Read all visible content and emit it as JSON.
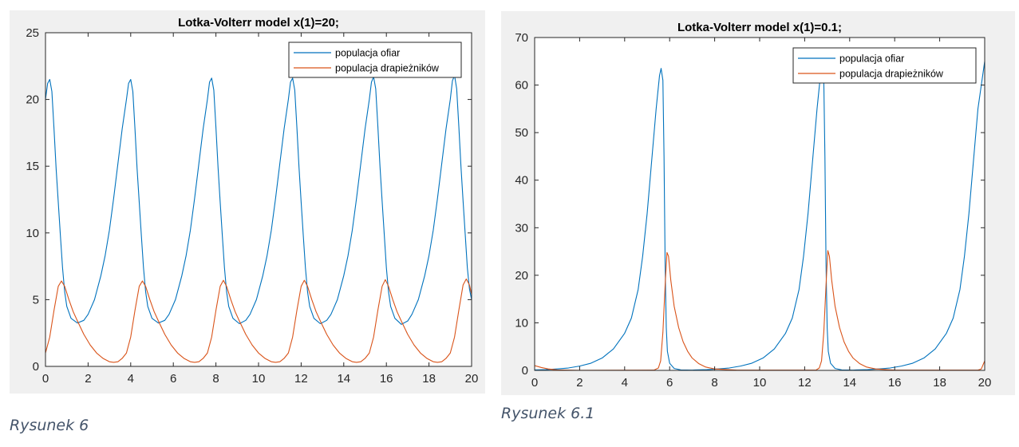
{
  "captions": [
    "Rysunek 6",
    "Rysunek 6.1"
  ],
  "colors": {
    "prey": "#0072BD",
    "predator": "#D95319",
    "figure_bg": "#f0f0f0"
  },
  "chart_data": [
    {
      "type": "line",
      "title": "Lotka-Volterr model x(1)=20;",
      "xlabel": "",
      "ylabel": "",
      "xlim": [
        0,
        20
      ],
      "ylim": [
        0,
        25
      ],
      "xticks": [
        "0",
        "2",
        "4",
        "6",
        "8",
        "10",
        "12",
        "14",
        "16",
        "18",
        "20"
      ],
      "yticks": [
        "0",
        "5",
        "10",
        "15",
        "20",
        "25"
      ],
      "grid": false,
      "legend_position": "top-right",
      "series": [
        {
          "name": "populacja ofiar",
          "color": "#0072BD",
          "x": [
            0,
            0.1,
            0.2,
            0.3,
            0.4,
            0.5,
            0.6,
            0.7,
            0.8,
            0.9,
            1.0,
            1.2,
            1.5,
            1.8,
            2.0,
            2.3,
            2.6,
            2.8,
            3.0,
            3.2,
            3.4,
            3.6,
            3.8,
            3.9,
            4.0,
            4.1,
            4.2,
            4.3,
            4.4,
            4.5,
            4.6,
            4.7,
            4.8,
            5.0,
            5.3,
            5.6,
            5.8,
            6.1,
            6.4,
            6.6,
            6.8,
            7.0,
            7.2,
            7.4,
            7.6,
            7.7,
            7.8,
            7.9,
            8.0,
            8.1,
            8.2,
            8.3,
            8.4,
            8.5,
            8.6,
            8.8,
            9.1,
            9.4,
            9.6,
            9.9,
            10.2,
            10.4,
            10.6,
            10.8,
            11.0,
            11.2,
            11.4,
            11.5,
            11.6,
            11.7,
            11.8,
            11.9,
            12.0,
            12.1,
            12.2,
            12.3,
            12.4,
            12.6,
            12.9,
            13.2,
            13.4,
            13.7,
            14.0,
            14.2,
            14.4,
            14.6,
            14.8,
            15.0,
            15.2,
            15.3,
            15.4,
            15.5,
            15.6,
            15.7,
            15.8,
            15.9,
            16.0,
            16.1,
            16.2,
            16.4,
            16.7,
            17.0,
            17.2,
            17.5,
            17.8,
            18.0,
            18.2,
            18.4,
            18.6,
            18.8,
            19.0,
            19.1,
            19.2,
            19.3,
            19.4,
            19.5,
            19.6,
            19.7,
            19.8,
            19.9,
            20.0
          ],
          "y": [
            20,
            21.2,
            21.5,
            20.6,
            17.8,
            14.8,
            12.3,
            9.8,
            7.4,
            5.6,
            4.5,
            3.6,
            3.25,
            3.45,
            3.9,
            5.0,
            6.8,
            8.3,
            10.2,
            12.6,
            15.2,
            17.8,
            20,
            21.2,
            21.5,
            20.6,
            17.8,
            14.8,
            12.3,
            9.8,
            7.4,
            5.6,
            4.5,
            3.6,
            3.25,
            3.45,
            3.9,
            5.0,
            6.8,
            8.3,
            10.2,
            12.6,
            15.2,
            17.8,
            20,
            21.3,
            21.6,
            20.7,
            17.9,
            14.9,
            12.3,
            9.8,
            7.4,
            5.6,
            4.5,
            3.6,
            3.2,
            3.45,
            3.9,
            5.0,
            6.8,
            8.3,
            10.2,
            12.6,
            15.2,
            17.8,
            20,
            21.3,
            21.6,
            20.7,
            17.9,
            14.9,
            12.3,
            9.8,
            7.4,
            5.6,
            4.5,
            3.6,
            3.2,
            3.45,
            3.9,
            5.0,
            6.8,
            8.3,
            10.2,
            12.6,
            15.2,
            17.8,
            20,
            21.3,
            21.7,
            20.8,
            18.0,
            15.0,
            12.4,
            9.9,
            7.4,
            5.6,
            4.5,
            3.6,
            3.15,
            3.4,
            3.9,
            5.0,
            6.8,
            8.3,
            10.2,
            12.6,
            15.2,
            17.8,
            20,
            21.4,
            21.8,
            20.8,
            18.0,
            15.0,
            12.4,
            9.9,
            7.4,
            5.8,
            5.0
          ]
        },
        {
          "name": "populacja drapieżników",
          "color": "#D95319",
          "x": [
            0,
            0.2,
            0.4,
            0.6,
            0.75,
            0.9,
            1.1,
            1.3,
            1.5,
            1.8,
            2.1,
            2.4,
            2.7,
            3.0,
            3.2,
            3.4,
            3.6,
            3.8,
            4.0,
            4.2,
            4.4,
            4.55,
            4.7,
            4.9,
            5.1,
            5.3,
            5.6,
            5.9,
            6.2,
            6.5,
            6.8,
            7.0,
            7.2,
            7.4,
            7.6,
            7.8,
            8.0,
            8.2,
            8.35,
            8.5,
            8.7,
            8.9,
            9.1,
            9.4,
            9.7,
            10.0,
            10.3,
            10.6,
            10.8,
            11.0,
            11.2,
            11.4,
            11.6,
            11.8,
            12.0,
            12.15,
            12.3,
            12.5,
            12.7,
            12.9,
            13.2,
            13.5,
            13.8,
            14.1,
            14.4,
            14.6,
            14.8,
            15.0,
            15.2,
            15.4,
            15.6,
            15.8,
            15.95,
            16.1,
            16.3,
            16.5,
            16.7,
            17.0,
            17.3,
            17.6,
            17.9,
            18.2,
            18.4,
            18.6,
            18.8,
            19.0,
            19.2,
            19.4,
            19.6,
            19.75,
            19.9,
            20.0
          ],
          "y": [
            1.0,
            2.2,
            4.2,
            6.0,
            6.4,
            6.0,
            5.0,
            4.1,
            3.4,
            2.4,
            1.6,
            1.0,
            0.6,
            0.35,
            0.3,
            0.35,
            0.6,
            1.0,
            2.2,
            4.2,
            6.0,
            6.4,
            6.0,
            5.0,
            4.1,
            3.4,
            2.4,
            1.6,
            1.0,
            0.6,
            0.35,
            0.3,
            0.35,
            0.6,
            1.0,
            2.2,
            4.2,
            6.0,
            6.45,
            6.0,
            5.0,
            4.1,
            3.4,
            2.4,
            1.6,
            1.0,
            0.6,
            0.35,
            0.3,
            0.35,
            0.6,
            1.0,
            2.2,
            4.2,
            6.0,
            6.45,
            6.0,
            5.0,
            4.1,
            3.4,
            2.4,
            1.6,
            1.0,
            0.6,
            0.35,
            0.3,
            0.35,
            0.6,
            1.0,
            2.2,
            4.2,
            6.0,
            6.5,
            6.0,
            5.0,
            4.1,
            3.4,
            2.4,
            1.6,
            1.0,
            0.6,
            0.35,
            0.3,
            0.35,
            0.6,
            1.0,
            2.2,
            4.2,
            6.1,
            6.55,
            6.1,
            5.4
          ]
        }
      ]
    },
    {
      "type": "line",
      "title": "Lotka-Volterr model x(1)=0.1;",
      "xlabel": "",
      "ylabel": "",
      "xlim": [
        0,
        20
      ],
      "ylim": [
        0,
        70
      ],
      "xticks": [
        "0",
        "2",
        "4",
        "6",
        "8",
        "10",
        "12",
        "14",
        "16",
        "18",
        "20"
      ],
      "yticks": [
        "0",
        "10",
        "20",
        "30",
        "40",
        "50",
        "60",
        "70"
      ],
      "grid": false,
      "legend_position": "top-right",
      "series": [
        {
          "name": "populacja ofiar",
          "color": "#0072BD",
          "x": [
            0,
            0.5,
            1,
            1.5,
            2,
            2.5,
            3,
            3.5,
            4,
            4.3,
            4.6,
            4.8,
            5.0,
            5.2,
            5.4,
            5.55,
            5.62,
            5.7,
            5.75,
            5.8,
            5.85,
            5.9,
            6.0,
            6.2,
            6.5,
            7.0,
            7.15,
            7.65,
            8.15,
            8.65,
            9.15,
            9.65,
            10.15,
            10.65,
            11.15,
            11.45,
            11.75,
            11.95,
            12.15,
            12.35,
            12.55,
            12.7,
            12.77,
            12.85,
            12.9,
            12.95,
            13.0,
            13.05,
            13.15,
            13.35,
            13.65,
            14.15,
            14.3,
            14.8,
            15.3,
            15.8,
            16.3,
            16.8,
            17.3,
            17.8,
            18.3,
            18.6,
            18.9,
            19.1,
            19.3,
            19.5,
            19.7,
            19.85,
            20.0
          ],
          "y": [
            0.1,
            0.15,
            0.3,
            0.5,
            0.9,
            1.5,
            2.6,
            4.5,
            7.8,
            11,
            17,
            24,
            33,
            44,
            55,
            62,
            63.5,
            61,
            45,
            22,
            9,
            4,
            1.5,
            0.4,
            0.1,
            0.05,
            0.1,
            0.15,
            0.3,
            0.5,
            0.9,
            1.5,
            2.6,
            4.5,
            7.8,
            11,
            17,
            24,
            33,
            44,
            55,
            62,
            63,
            61,
            45,
            22,
            9,
            4,
            1.5,
            0.4,
            0.1,
            0.05,
            0.1,
            0.15,
            0.3,
            0.5,
            0.9,
            1.5,
            2.6,
            4.5,
            7.8,
            11,
            17,
            24,
            33,
            44,
            55,
            60,
            65
          ]
        },
        {
          "name": "populacja drapieżników",
          "color": "#D95319",
          "x": [
            0,
            0.3,
            0.6,
            1,
            2,
            5.3,
            5.5,
            5.6,
            5.7,
            5.8,
            5.88,
            5.95,
            6.05,
            6.2,
            6.4,
            6.6,
            6.8,
            7.0,
            7.3,
            7.6,
            8,
            9,
            12.5,
            12.65,
            12.75,
            12.85,
            12.95,
            13.03,
            13.1,
            13.2,
            13.35,
            13.55,
            13.75,
            13.95,
            14.15,
            14.45,
            14.75,
            15.15,
            16,
            19.7,
            19.85,
            20.0
          ],
          "y": [
            1.0,
            0.6,
            0.3,
            0.1,
            0.02,
            0.05,
            0.5,
            2,
            8,
            18,
            24.8,
            24,
            19,
            13.5,
            9,
            6,
            4,
            2.6,
            1.4,
            0.7,
            0.3,
            0.05,
            0.05,
            0.5,
            2,
            8,
            18,
            25.2,
            24,
            19,
            13.5,
            9,
            6,
            4,
            2.6,
            1.4,
            0.7,
            0.3,
            0.05,
            0.05,
            0.3,
            2
          ]
        }
      ]
    }
  ]
}
